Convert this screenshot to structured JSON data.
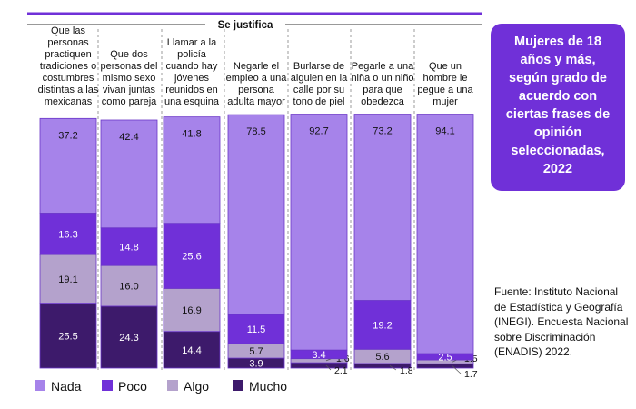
{
  "header": {
    "label": "Se justifica"
  },
  "title_box": {
    "text": "Mujeres de 18 años y más, según grado de acuerdo con ciertas frases de opinión seleccionadas, 2022"
  },
  "source": {
    "text": "Fuente: Instituto Nacional de Estadística y Geografía (INEGI). Encuesta Nacional sobre Discriminación (ENADIS) 2022."
  },
  "colors": {
    "nada": "#a683ea",
    "poco": "#7030d8",
    "algo": "#b4a2cc",
    "mucho": "#3d1a6b",
    "border": "#6a35c8"
  },
  "chart_data": {
    "type": "bar",
    "stacked": true,
    "title": "Se justifica",
    "categories": [
      [
        "Que las",
        "personas",
        "practiquen",
        "tradiciones o",
        "costumbres",
        "distintas a las",
        "mexicanas"
      ],
      [
        "Que dos",
        "personas del",
        "mismo sexo",
        "vivan juntas",
        "como pareja"
      ],
      [
        "Llamar a la",
        "policía",
        "cuando hay",
        "jóvenes",
        "reunidos en",
        "una esquina"
      ],
      [
        "Negarle el",
        "empleo a una",
        "persona",
        "adulta mayor"
      ],
      [
        "Burlarse de",
        "alguien en la",
        "calle por su",
        "tono de piel"
      ],
      [
        "Pegarle a una",
        "niña o un niño",
        "para que",
        "obedezca"
      ],
      [
        "Que un",
        "hombre le",
        "pegue a una",
        "mujer"
      ]
    ],
    "series": [
      {
        "name": "Mucho",
        "values": [
          25.5,
          24.3,
          14.4,
          3.9,
          2.1,
          1.8,
          1.7
        ]
      },
      {
        "name": "Algo",
        "values": [
          19.1,
          16.0,
          16.9,
          5.7,
          1.6,
          5.6,
          1.5
        ]
      },
      {
        "name": "Poco",
        "values": [
          16.3,
          14.8,
          25.6,
          11.5,
          3.4,
          19.2,
          2.5
        ]
      },
      {
        "name": "Nada",
        "values": [
          37.2,
          42.4,
          41.8,
          78.5,
          92.7,
          73.2,
          94.1
        ]
      }
    ],
    "ylim": [
      0,
      100
    ],
    "legend": {
      "position": "bottom-left",
      "entries": [
        "Nada",
        "Poco",
        "Algo",
        "Mucho"
      ]
    }
  }
}
